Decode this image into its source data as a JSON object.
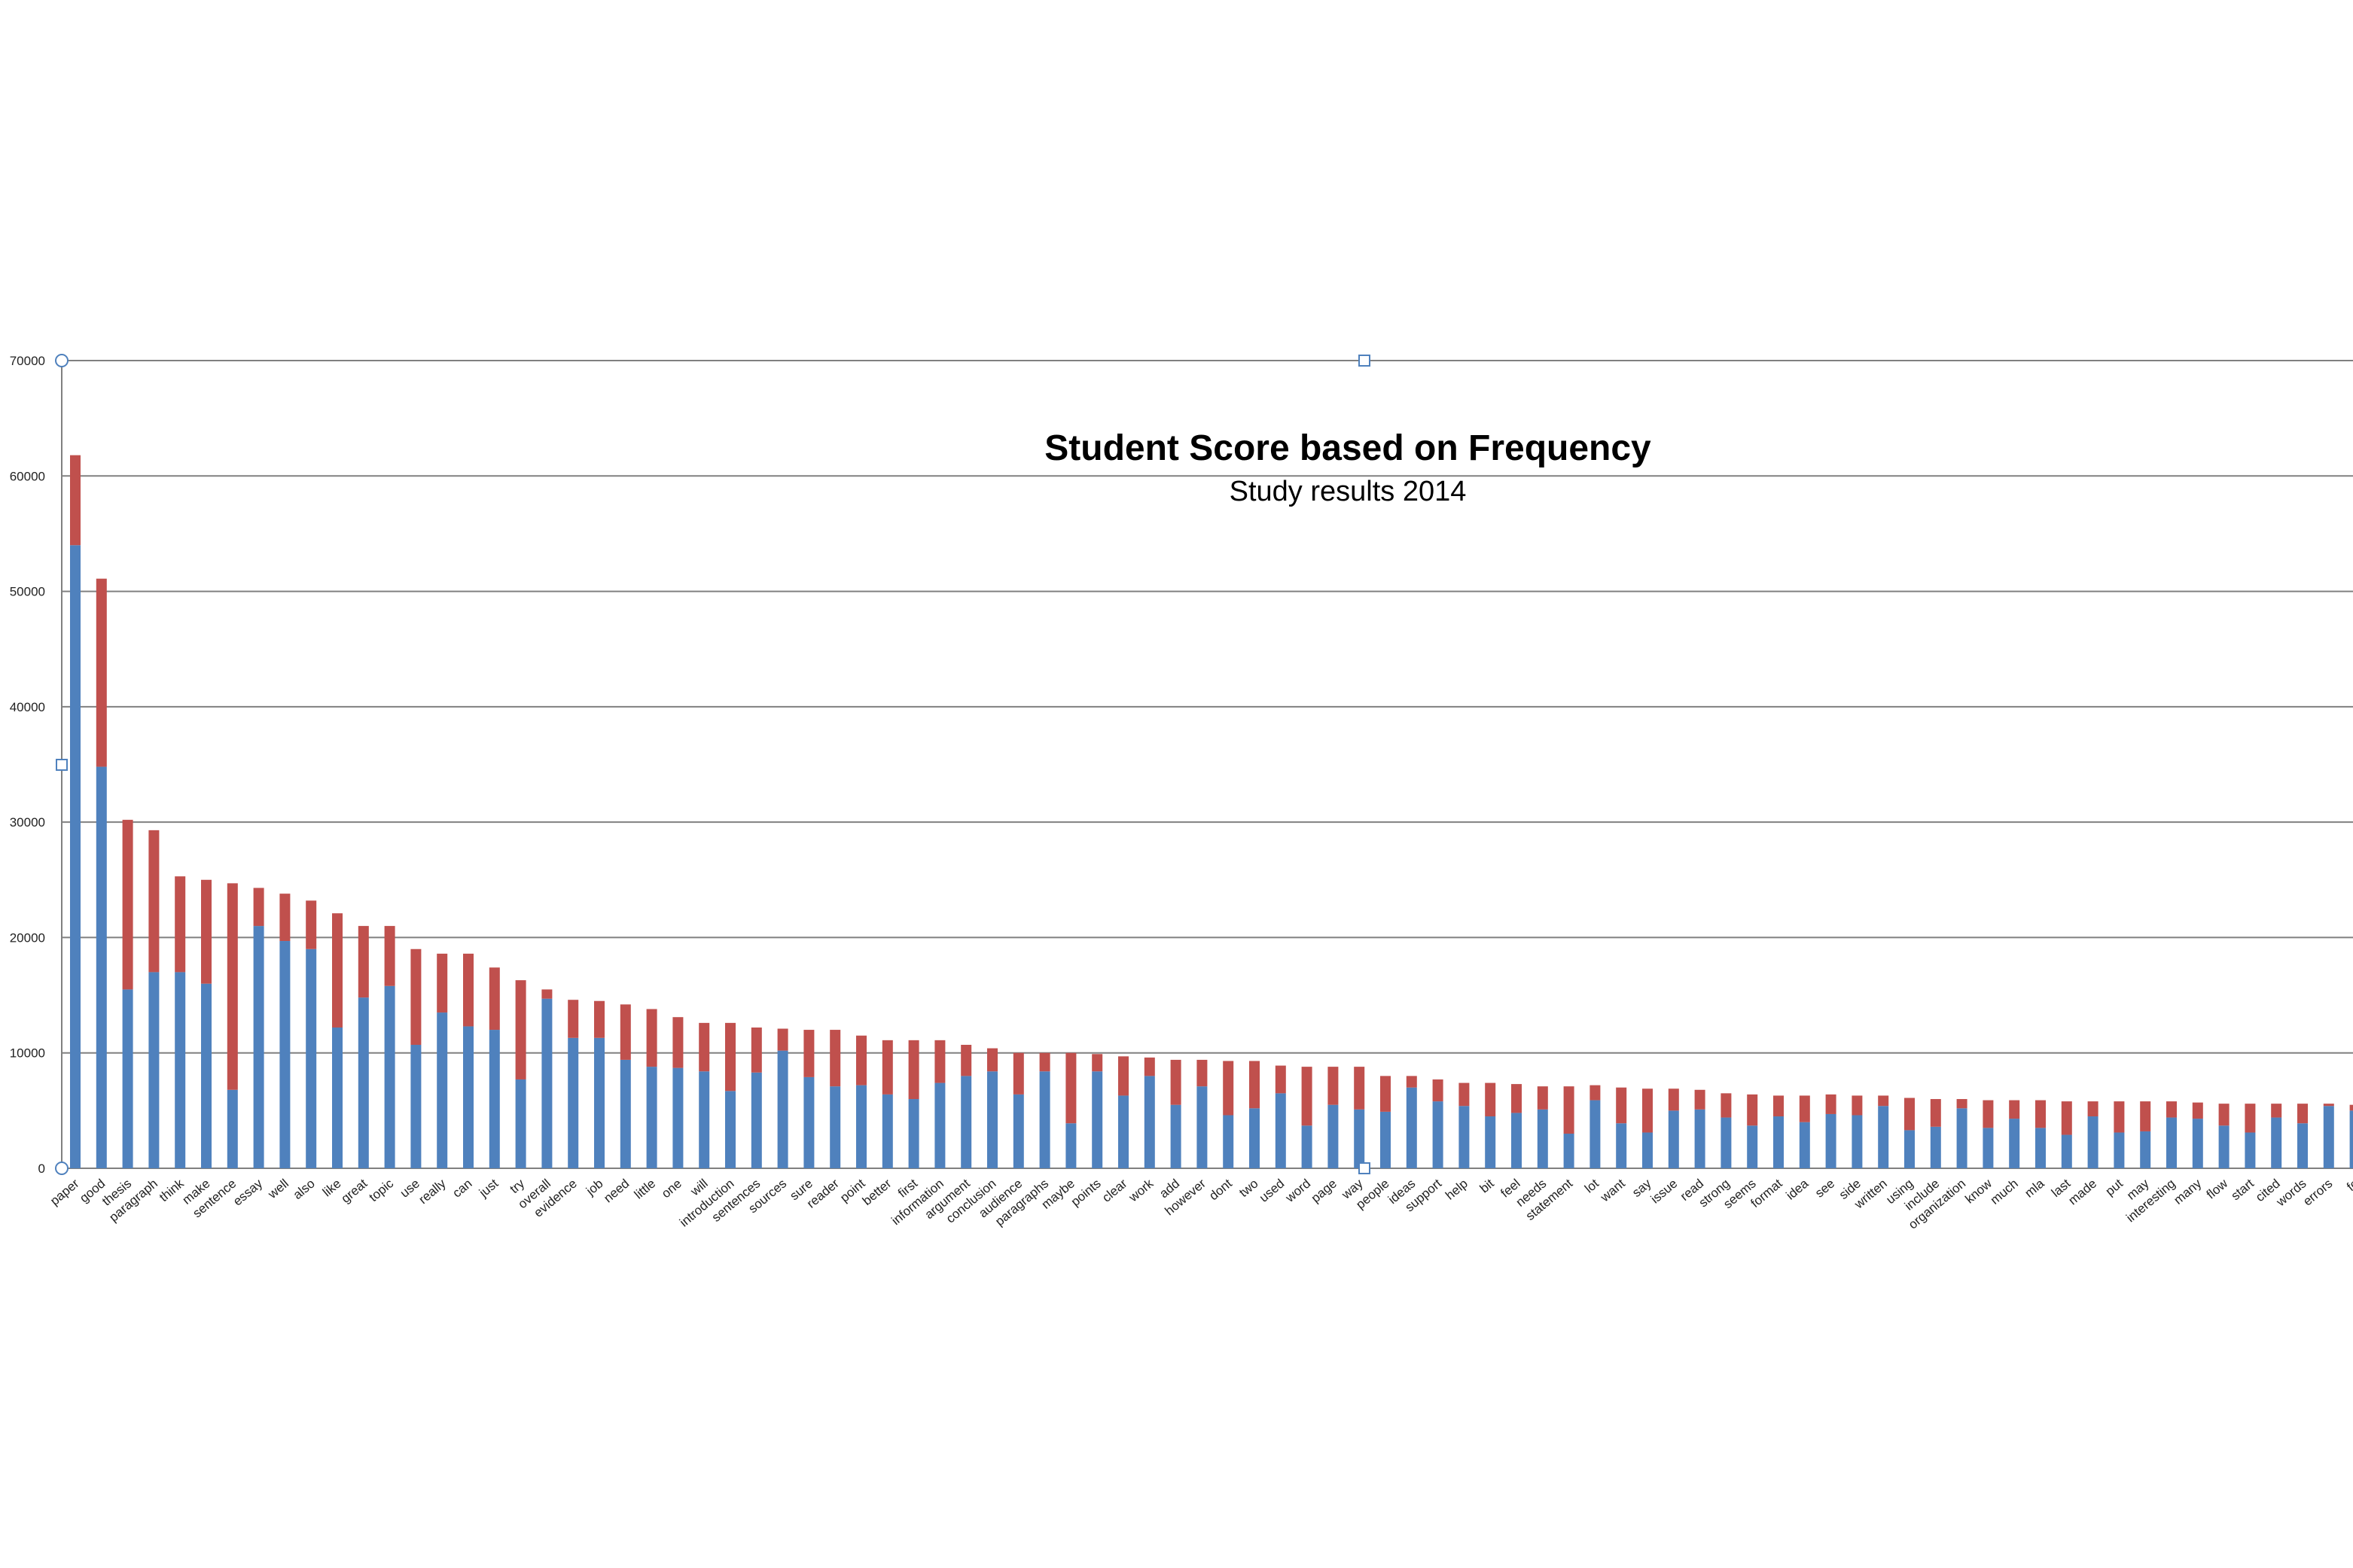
{
  "chart_data": {
    "type": "bar",
    "stacked": true,
    "title": "Student Score based on Frequency",
    "subtitle": "Study results 2014",
    "ylim": [
      0,
      70000
    ],
    "yticks": [
      0,
      10000,
      20000,
      30000,
      40000,
      50000,
      60000,
      70000
    ],
    "ytick_labels": [
      "0",
      "10000",
      "20000",
      "30000",
      "40000",
      "50000",
      "60000",
      "70000"
    ],
    "grid": true,
    "colors": {
      "blue": "#4f81bd",
      "red": "#c0504d",
      "grid": "#808080"
    },
    "categories": [
      "paper",
      "good",
      "thesis",
      "paragraph",
      "think",
      "make",
      "sentence",
      "essay",
      "well",
      "also",
      "like",
      "great",
      "topic",
      "use",
      "really",
      "can",
      "just",
      "try",
      "overall",
      "evidence",
      "job",
      "need",
      "little",
      "one",
      "will",
      "introduction",
      "sentences",
      "sources",
      "sure",
      "reader",
      "point",
      "better",
      "first",
      "information",
      "argument",
      "conclusion",
      "audience",
      "paragraphs",
      "maybe",
      "points",
      "clear",
      "work",
      "add",
      "however",
      "dont",
      "two",
      "used",
      "word",
      "page",
      "way",
      "people",
      "ideas",
      "support",
      "help",
      "bit",
      "feel",
      "needs",
      "statement",
      "lot",
      "want",
      "say",
      "issue",
      "read",
      "strong",
      "seems",
      "format",
      "idea",
      "see",
      "side",
      "written",
      "using",
      "include",
      "organization",
      "know",
      "much",
      "mla",
      "last",
      "made",
      "put",
      "may",
      "interesting",
      "many",
      "flow",
      "start",
      "cited",
      "words",
      "errors",
      "fo"
    ],
    "series": [
      {
        "values": [
          54000,
          34800,
          15500,
          17000,
          17000,
          16000,
          6800,
          21000,
          19700,
          19000,
          12200,
          14800,
          15800,
          10700,
          13500,
          12300,
          12000,
          7700,
          14700,
          11300,
          11300,
          9400,
          8800,
          8700,
          8400,
          6700,
          8300,
          10200,
          7900,
          7100,
          7200,
          6400,
          6000,
          7400,
          8000,
          8400,
          6400,
          8400,
          3900,
          8400,
          6300,
          8000,
          5500,
          7100,
          4600,
          5200,
          6500,
          3700,
          5500,
          5100,
          4900,
          7000,
          5800,
          5400,
          4500,
          4800,
          5100,
          3000,
          5900,
          3900,
          3100,
          5000,
          5100,
          4400,
          3700,
          4500,
          4000,
          4700,
          4600,
          5400,
          3300,
          3600,
          5200,
          3500,
          4300,
          3500,
          2900,
          4500,
          3100,
          3200,
          4400,
          4300,
          3700,
          3100,
          4400,
          3900,
          5400,
          5000
        ]
      },
      {
        "values": [
          7800,
          16300,
          14700,
          12300,
          8300,
          9000,
          17900,
          3300,
          4100,
          4200,
          9900,
          6200,
          5200,
          8300,
          5100,
          6300,
          5400,
          8600,
          800,
          3300,
          3200,
          4800,
          5000,
          4400,
          4200,
          5900,
          3900,
          1900,
          4100,
          4900,
          4300,
          4700,
          5100,
          3700,
          2700,
          2000,
          3600,
          1600,
          6100,
          1500,
          3400,
          1600,
          3900,
          2300,
          4700,
          4100,
          2400,
          5100,
          3300,
          3700,
          3100,
          1000,
          1900,
          2000,
          2900,
          2500,
          2000,
          4100,
          1300,
          3100,
          3800,
          1900,
          1700,
          2100,
          2700,
          1800,
          2300,
          1700,
          1700,
          900,
          2800,
          2400,
          800,
          2400,
          1600,
          2400,
          2900,
          1300,
          2700,
          2600,
          1400,
          1400,
          1900,
          2500,
          1200,
          1700,
          200,
          500
        ]
      }
    ]
  }
}
